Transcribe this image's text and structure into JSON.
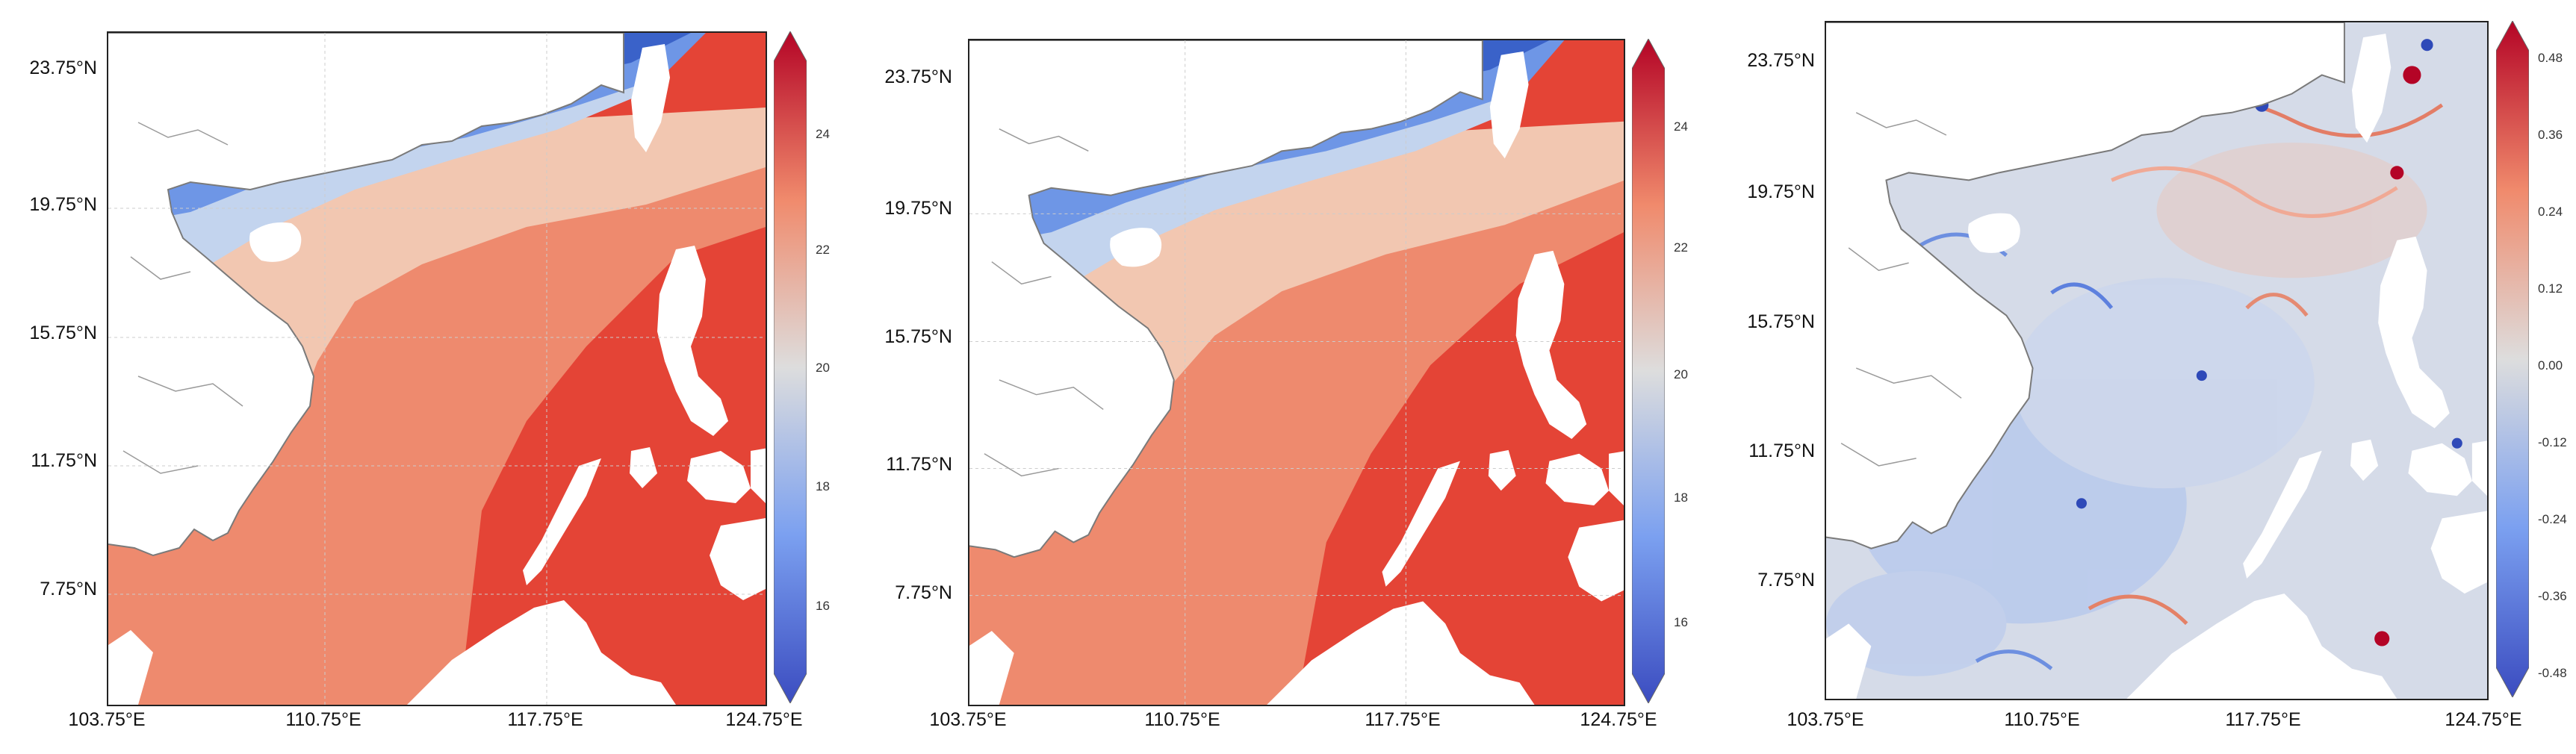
{
  "lat_labels": [
    "23.75°N",
    "19.75°N",
    "15.75°N",
    "11.75°N",
    "7.75°N"
  ],
  "lon_labels": [
    "103.75°E",
    "110.75°E",
    "117.75°E",
    "124.75°E"
  ],
  "colors": {
    "deep_blue": "#3a62c9",
    "blue": "#6e96e6",
    "light_blue": "#c3d4ee",
    "pale": "#f2c7b1",
    "salmon": "#ee8a6e",
    "red": "#e44436",
    "deep_red": "#bd1023",
    "neutral": "#dcdcdc",
    "land": "#ffffff",
    "coast": "#777777"
  },
  "panels": [
    {
      "colorbar": {
        "ticks": [
          "24",
          "22",
          "20",
          "18",
          "16"
        ]
      }
    },
    {
      "colorbar": {
        "ticks": [
          "24",
          "22",
          "20",
          "18",
          "16"
        ]
      }
    },
    {
      "colorbar": {
        "ticks": [
          "0.48",
          "0.36",
          "0.24",
          "0.12",
          "0.00",
          "-0.12",
          "-0.24",
          "-0.36",
          "-0.48"
        ]
      }
    }
  ]
}
